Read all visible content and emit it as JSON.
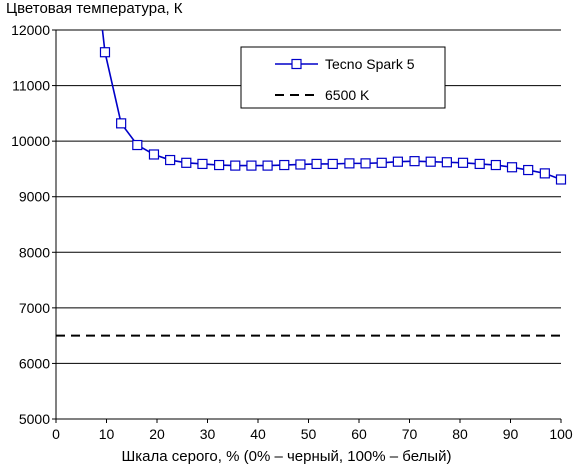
{
  "chart_data": {
    "type": "line",
    "ylabel": "Цветовая температура, К",
    "xlabel": "Шкала серого, % (0% – черный, 100% – белый)",
    "xlim": [
      0,
      100
    ],
    "ylim": [
      5000,
      12000
    ],
    "x_ticks": [
      0,
      10,
      20,
      30,
      40,
      50,
      60,
      70,
      80,
      90,
      100
    ],
    "y_ticks": [
      5000,
      6000,
      7000,
      8000,
      9000,
      10000,
      11000,
      12000
    ],
    "grid": "horizontal",
    "legend_position": "top-right",
    "series": [
      {
        "name": "Tecno Spark 5",
        "style": "solid-with-square-markers",
        "color": "#0000c8",
        "x": [
          9.7,
          12.9,
          16.1,
          19.4,
          22.6,
          25.8,
          29.0,
          32.3,
          35.5,
          38.7,
          41.9,
          45.2,
          48.4,
          51.6,
          54.8,
          58.1,
          61.3,
          64.5,
          67.7,
          71.0,
          74.2,
          77.4,
          80.6,
          83.9,
          87.1,
          90.3,
          93.5,
          96.8,
          100.0
        ],
        "y": [
          11600,
          10320,
          9930,
          9760,
          9660,
          9610,
          9590,
          9570,
          9560,
          9560,
          9560,
          9570,
          9580,
          9590,
          9590,
          9600,
          9600,
          9610,
          9630,
          9640,
          9630,
          9620,
          9610,
          9590,
          9570,
          9530,
          9480,
          9420,
          9310
        ],
        "leading_x": [
          9.2,
          9.7
        ],
        "leading_y": [
          12000,
          11600
        ]
      },
      {
        "name": "6500 K",
        "style": "dashed",
        "color": "#000000",
        "x": [
          0,
          100
        ],
        "y": [
          6500,
          6500
        ]
      }
    ]
  }
}
